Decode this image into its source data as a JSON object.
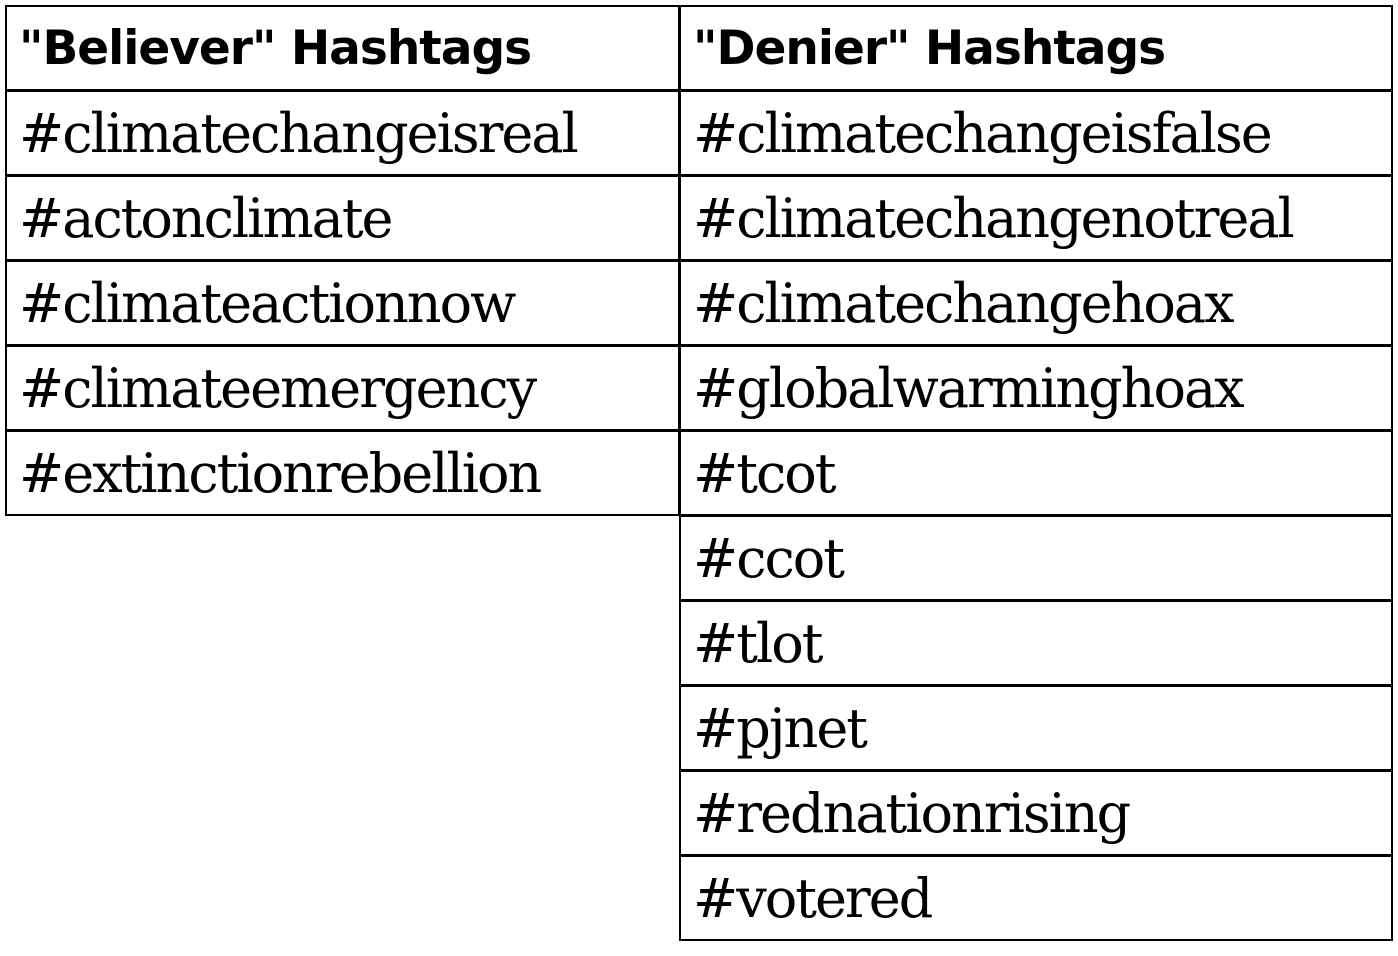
{
  "table": {
    "believer": {
      "header": "\"Believer\" Hashtags",
      "tags": [
        "#climatechangeisreal",
        "#actonclimate",
        "#climateactionnow",
        "#climateemergency",
        "#extinctionrebellion"
      ]
    },
    "denier": {
      "header": "\"Denier\" Hashtags",
      "tags": [
        "#climatechangeisfalse",
        "#climatechangenotreal",
        "#climatechangehoax",
        "#globalwarminghoax",
        "#tcot",
        "#ccot",
        "#tlot",
        "#pjnet",
        "#rednationrising",
        "#votered"
      ]
    }
  }
}
